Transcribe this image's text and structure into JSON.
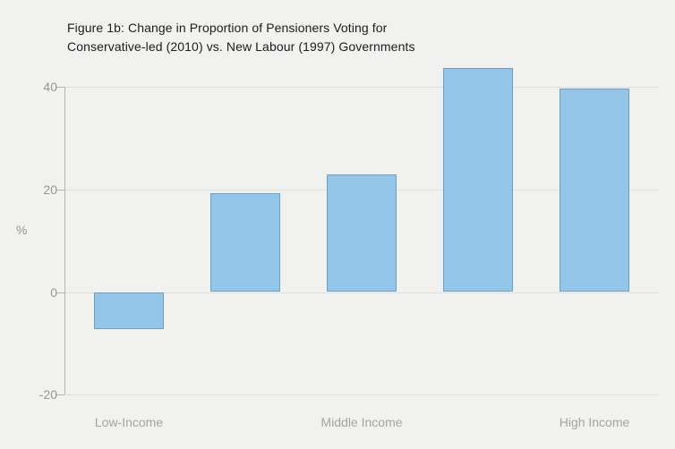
{
  "chart_data": {
    "type": "bar",
    "title": "Figure 1b: Change in Proportion of Pensioners Voting for Conservative-led (2010) vs. New Labour (1997) Governments",
    "title_line1": "Figure 1b: Change in Proportion of Pensioners Voting for",
    "title_line2": "Conservative-led (2010) vs. New Labour (1997) Governments",
    "categories": [
      "Low-Income",
      "",
      "Middle Income",
      "",
      "High Income"
    ],
    "values": [
      -7.3,
      19.3,
      23,
      43.8,
      39.7
    ],
    "xlabel": "",
    "ylabel": "%",
    "yticks": [
      40,
      20,
      0,
      -20
    ],
    "ylim": [
      -20,
      45
    ],
    "grid": true,
    "legend": "none",
    "colors": {
      "background": "#f1f1ef",
      "bar_fill": "#92c5e8",
      "bar_border": "#68a2ca",
      "gridline": "#dddddb",
      "axis_line": "#b3b3b0",
      "tick_text": "#969693",
      "title_text": "#1c1c1c"
    }
  }
}
